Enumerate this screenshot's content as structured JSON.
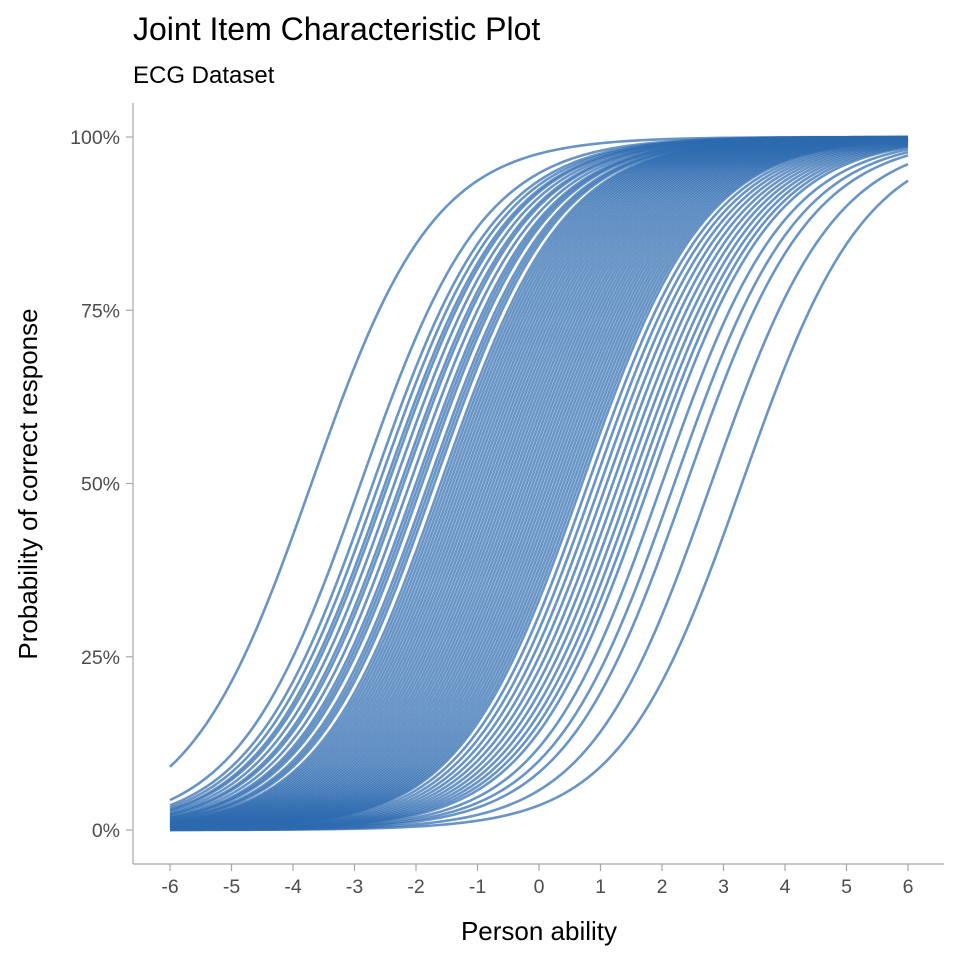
{
  "chart_data": {
    "type": "line",
    "title": "Joint Item Characteristic Plot",
    "subtitle": "ECG Dataset",
    "xlabel": "Person ability",
    "ylabel": "Probability of correct response",
    "xlim": [
      -6,
      6
    ],
    "ylim": [
      0,
      1
    ],
    "x_ticks": [
      "-6",
      "-5",
      "-4",
      "-3",
      "-2",
      "-1",
      "0",
      "1",
      "2",
      "3",
      "4",
      "5",
      "6"
    ],
    "y_ticks": [
      "0%",
      "25%",
      "50%",
      "75%",
      "100%"
    ],
    "y_tick_values": [
      0,
      0.25,
      0.5,
      0.75,
      1
    ],
    "line_color": "#2e6bb0",
    "grid": false,
    "legend": "none",
    "curve_model": "logistic: P(x) = 1 / (1 + exp(-(x - b)))",
    "item_difficulties": [
      -3.7,
      -2.9,
      -2.7,
      -2.6,
      -2.5,
      -2.45,
      -2.35,
      -2.25,
      -2.2,
      -2.1,
      -2.0,
      -1.95,
      -1.9,
      -1.8,
      -1.75,
      -1.7,
      -1.6,
      -1.55,
      -1.5,
      -1.45,
      -1.4,
      -1.35,
      -1.3,
      -1.25,
      -1.2,
      -1.15,
      -1.1,
      -1.05,
      -1.0,
      -0.95,
      -0.9,
      -0.85,
      -0.8,
      -0.75,
      -0.7,
      -0.65,
      -0.6,
      -0.55,
      -0.5,
      -0.45,
      -0.4,
      -0.35,
      -0.3,
      -0.25,
      -0.2,
      -0.15,
      -0.1,
      -0.05,
      0.0,
      0.05,
      0.1,
      0.15,
      0.2,
      0.25,
      0.3,
      0.35,
      0.4,
      0.45,
      0.5,
      0.55,
      0.6,
      0.65,
      0.7,
      0.8,
      0.9,
      1.0,
      1.1,
      1.2,
      1.3,
      1.4,
      1.5,
      1.6,
      1.7,
      1.8,
      2.0,
      2.2,
      2.4,
      2.8,
      3.3
    ]
  }
}
